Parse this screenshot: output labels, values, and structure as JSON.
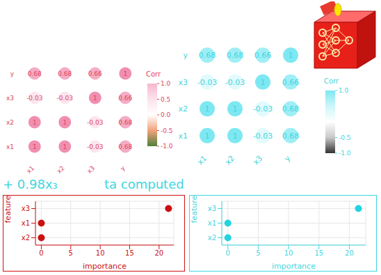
{
  "chart_data": [
    {
      "type": "heatmap",
      "x": [
        "x1",
        "x2",
        "x3",
        "y"
      ],
      "y": [
        "x1",
        "x2",
        "x3",
        "y"
      ],
      "cells": [
        [
          1,
          1,
          -0.03,
          0.68
        ],
        [
          1,
          1,
          -0.03,
          0.68
        ],
        [
          -0.03,
          -0.03,
          1,
          0.66
        ],
        [
          0.68,
          0.68,
          0.66,
          1
        ]
      ],
      "color": "#f08fb0",
      "color_bar": {
        "title": "Corr",
        "range": [
          -1,
          1
        ],
        "ticks": [
          {
            "value": 1,
            "label": "1.0"
          },
          {
            "value": 0.5,
            "label": "0.5"
          },
          {
            "value": 0,
            "label": "0.0"
          },
          {
            "value": -0.5,
            "label": "-0.5"
          },
          {
            "value": -1,
            "label": "-1.0"
          }
        ]
      }
    },
    {
      "type": "heatmap",
      "x": [
        "x1",
        "x2",
        "x3",
        "y"
      ],
      "y": [
        "x1",
        "x2",
        "x3",
        "y"
      ],
      "cells": [
        [
          1,
          1,
          -0.03,
          0.68
        ],
        [
          1,
          1,
          -0.03,
          0.68
        ],
        [
          -0.03,
          -0.03,
          1,
          0.66
        ],
        [
          0.68,
          0.68,
          0.66,
          1
        ]
      ],
      "color": "#7ee8f2",
      "color_bar": {
        "title": "Corr",
        "range": [
          -1,
          1
        ],
        "ticks": [
          {
            "value": 1,
            "label": "1.0"
          },
          {
            "value": -0.5,
            "label": "-0.5"
          },
          {
            "value": -1,
            "label": "-1.0"
          }
        ]
      }
    },
    {
      "type": "scatter",
      "orientation": "horizontal",
      "categories": [
        "x3",
        "x1",
        "x2"
      ],
      "values": [
        21.6,
        0,
        0
      ],
      "xlabel": "importance",
      "ylabel": "feature",
      "xlim": [
        -1,
        22.5
      ],
      "xticks": [
        0,
        5,
        10,
        15,
        20
      ],
      "grid": true,
      "color": "#cc1111",
      "marker": "circle"
    },
    {
      "type": "scatter",
      "orientation": "horizontal",
      "categories": [
        "x3",
        "x1",
        "x2"
      ],
      "values": [
        21.5,
        0,
        0
      ],
      "xlabel": "importance",
      "ylabel": "feature",
      "xlim": [
        -1,
        22.7
      ],
      "xticks": [
        0,
        5,
        10,
        15,
        20
      ],
      "grid": true,
      "color": "#22d3e0",
      "marker": "circle"
    }
  ],
  "annotations": [
    "+ 0.98x₃",
    "ta computed"
  ]
}
